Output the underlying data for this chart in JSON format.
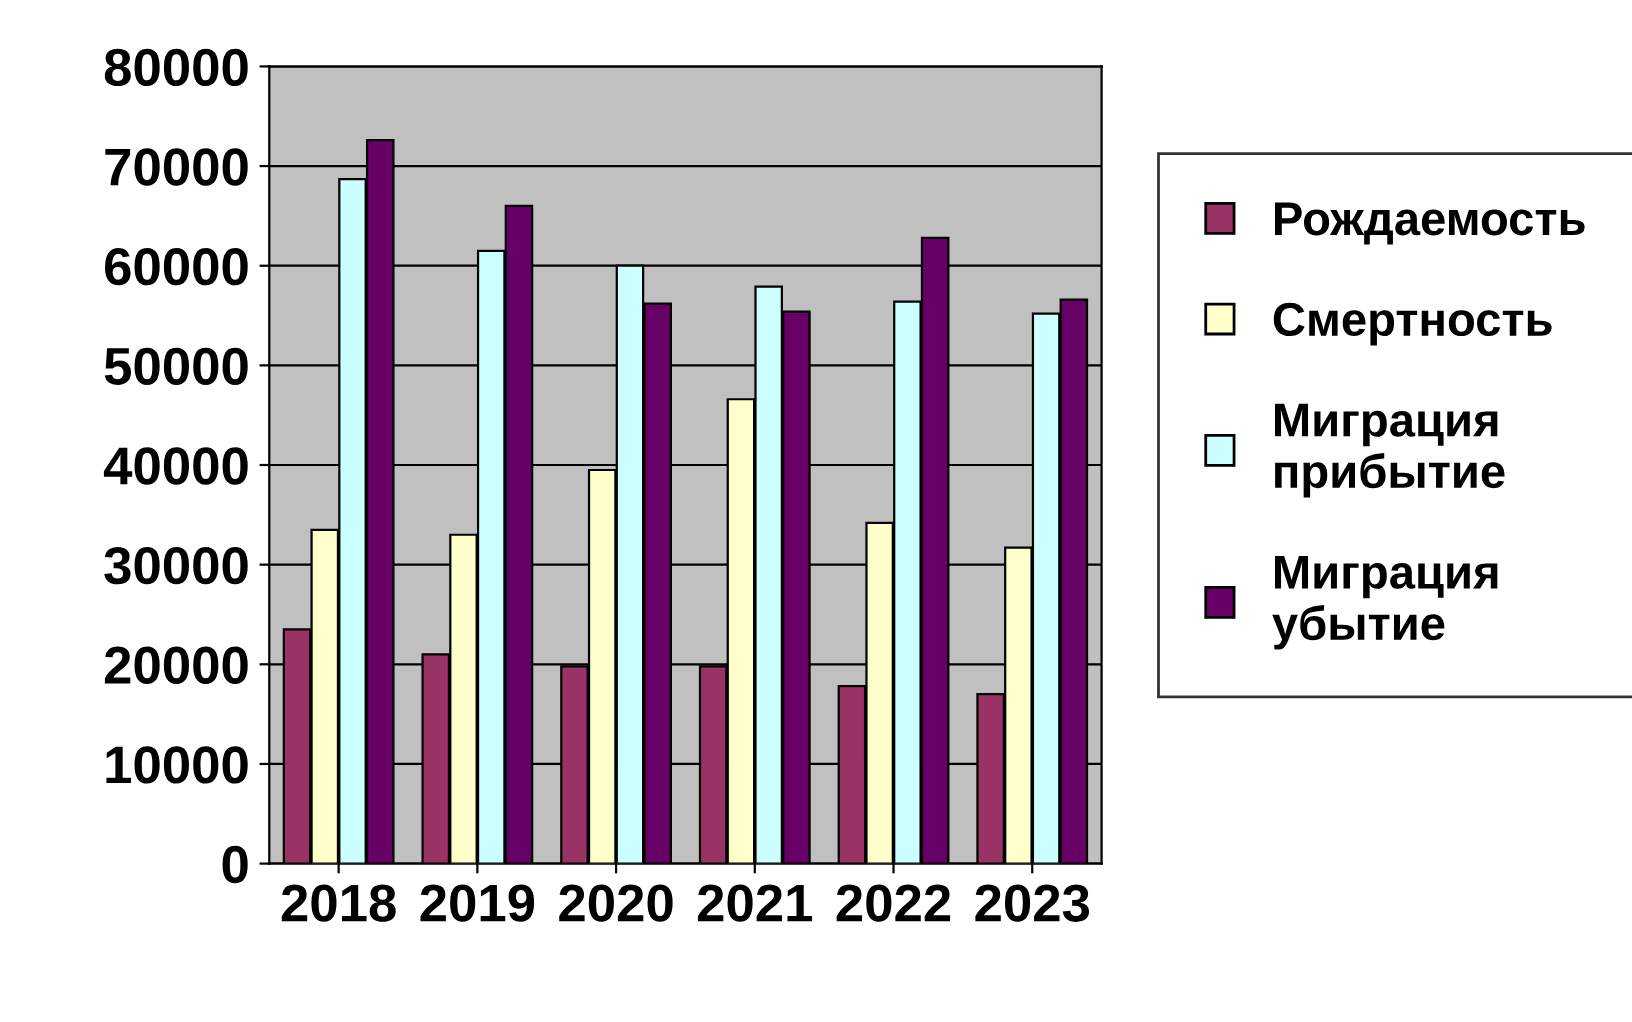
{
  "chart_data": {
    "type": "bar",
    "categories": [
      "2018",
      "2019",
      "2020",
      "2021",
      "2022",
      "2023"
    ],
    "series": [
      {
        "name": "Рождаемость",
        "color": "#993366",
        "values": [
          23500,
          21000,
          19800,
          19800,
          17800,
          17000
        ]
      },
      {
        "name": "Смертность",
        "color": "#ffffcc",
        "values": [
          33500,
          33000,
          39500,
          46600,
          34200,
          31700
        ]
      },
      {
        "name": "Миграция\nприбытие",
        "color": "#ccffff",
        "values": [
          68700,
          61500,
          60000,
          57900,
          56400,
          55200
        ]
      },
      {
        "name": "Миграция\nубытие",
        "color": "#660066",
        "values": [
          72600,
          66000,
          56200,
          55400,
          62800,
          56600
        ]
      }
    ],
    "ylim": [
      0,
      80000
    ],
    "yticks": [
      0,
      10000,
      20000,
      30000,
      40000,
      50000,
      60000,
      70000,
      80000
    ],
    "grid": "y",
    "legend": "right"
  }
}
